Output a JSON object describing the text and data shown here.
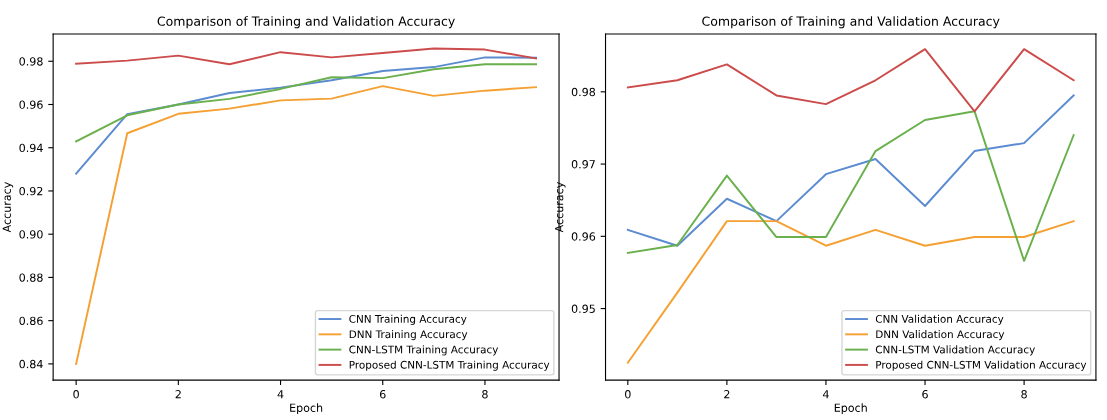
{
  "chart_data": [
    {
      "type": "line",
      "title": "Comparison of Training and Validation Accuracy",
      "xlabel": "Epoch",
      "ylabel": "Accuracy",
      "x": [
        0,
        1,
        2,
        3,
        4,
        5,
        6,
        7,
        8,
        9
      ],
      "xlim": [
        -0.45,
        9.45
      ],
      "xticks": [
        0,
        2,
        4,
        6,
        8
      ],
      "ylim": [
        0.8325,
        0.9926
      ],
      "yticks": [
        0.84,
        0.86,
        0.88,
        {
          "value": 0.9,
          "label": "0.90"
        },
        0.92,
        0.94,
        0.96,
        0.98
      ],
      "grid": false,
      "legend": "bottom right",
      "series": [
        {
          "name": "CNN Training Accuracy",
          "color": "#5b8bd0",
          "values": [
            0.928,
            0.9555,
            0.96,
            0.9653,
            0.9678,
            0.9712,
            0.9755,
            0.9773,
            0.9818,
            0.9816
          ]
        },
        {
          "name": "DNN Training Accuracy",
          "color": "#f5a033",
          "values": [
            0.84,
            0.9467,
            0.9557,
            0.9581,
            0.9619,
            0.9627,
            0.9685,
            0.964,
            0.9664,
            0.968
          ]
        },
        {
          "name": "CNN-LSTM Training Accuracy",
          "color": "#6ab04c",
          "values": [
            0.9429,
            0.955,
            0.96,
            0.9626,
            0.9672,
            0.9726,
            0.9722,
            0.9763,
            0.9786,
            0.9786
          ]
        },
        {
          "name": "Proposed CNN-LSTM Training Accuracy",
          "color": "#cc4b4b",
          "values": [
            0.9789,
            0.9803,
            0.9826,
            0.9786,
            0.9842,
            0.9818,
            0.9838,
            0.9859,
            0.9854,
            0.9813
          ]
        }
      ]
    },
    {
      "type": "line",
      "title": "Comparison of Training and Validation Accuracy",
      "xlabel": "Epoch",
      "ylabel": "Accuracy",
      "x": [
        0,
        1,
        2,
        3,
        4,
        5,
        6,
        7,
        8,
        9
      ],
      "xlim": [
        -0.45,
        9.45
      ],
      "xticks": [
        0,
        2,
        4,
        6,
        8
      ],
      "ylim": [
        0.9401,
        0.988
      ],
      "yticks": [
        0.95,
        0.96,
        0.97,
        0.98
      ],
      "grid": false,
      "legend": "bottom right",
      "series": [
        {
          "name": "CNN Validation Accuracy",
          "color": "#5b8bd0",
          "values": [
            0.9609,
            0.9587,
            0.9652,
            0.9621,
            0.9686,
            0.9707,
            0.9642,
            0.9718,
            0.9729,
            0.9795
          ]
        },
        {
          "name": "DNN Validation Accuracy",
          "color": "#f5a033",
          "values": [
            0.9425,
            0.9522,
            0.9621,
            0.9621,
            0.9587,
            0.9609,
            0.9587,
            0.9599,
            0.9599,
            0.9621
          ]
        },
        {
          "name": "CNN-LSTM Validation Accuracy",
          "color": "#6ab04c",
          "values": [
            0.9577,
            0.9588,
            0.9684,
            0.9599,
            0.9599,
            0.9718,
            0.9761,
            0.9773,
            0.9566,
            0.974
          ]
        },
        {
          "name": "Proposed CNN-LSTM Validation Accuracy",
          "color": "#cc4b4b",
          "values": [
            0.9806,
            0.9816,
            0.9838,
            0.9795,
            0.9783,
            0.9816,
            0.9859,
            0.9773,
            0.9859,
            0.9816
          ]
        }
      ]
    }
  ]
}
